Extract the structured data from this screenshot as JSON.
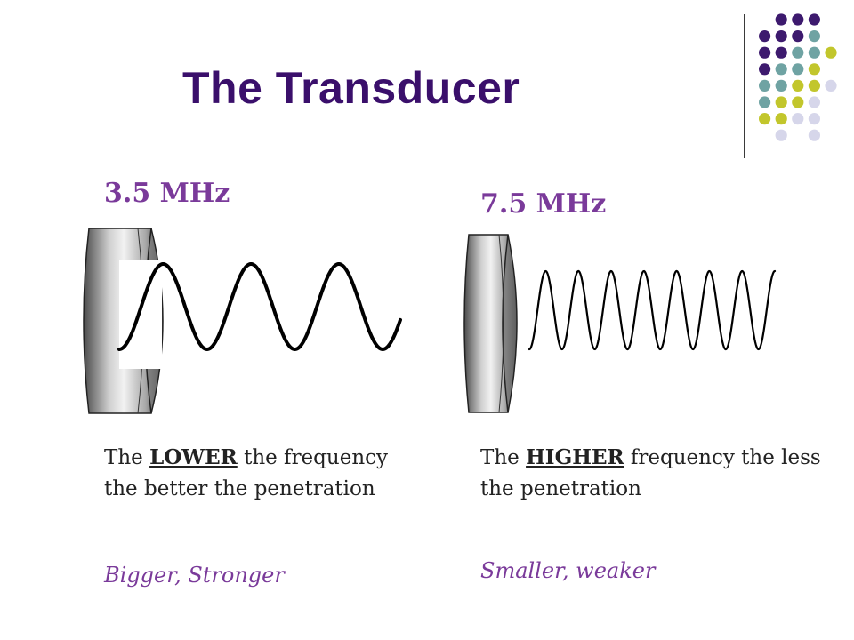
{
  "slide": {
    "title": "The Transducer"
  },
  "left": {
    "frequency": "3.5 MHz",
    "desc_pre": "The ",
    "desc_emph": "LOWER",
    "desc_post": " the frequency the better the penetration",
    "note": "Bigger, Stronger"
  },
  "right": {
    "frequency": "7.5 MHz",
    "desc_pre": "The ",
    "desc_emph": "HIGHER",
    "desc_post": " frequency the less the penetration",
    "note": "Smaller, weaker"
  },
  "colors": {
    "title": "#3a0f6b",
    "accent": "#7a3a9a",
    "dot_purple": "#3d1a6e",
    "dot_teal": "#6fa3a3",
    "dot_lime": "#c2c62c",
    "dot_lavender": "#d6d6ea"
  }
}
